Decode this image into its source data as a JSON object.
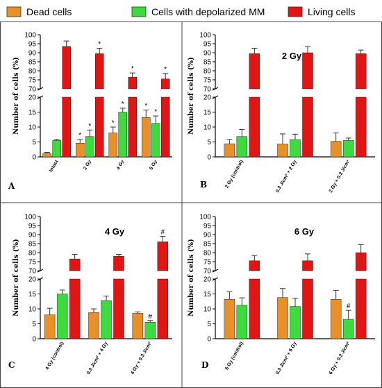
{
  "legend": [
    {
      "name": "Dead cells",
      "color": "#E8912A"
    },
    {
      "name": "Cells with depolarized MM",
      "color": "#3DDB3D"
    },
    {
      "name": "Living cells",
      "color": "#E21515"
    }
  ],
  "chart_data": [
    {
      "type": "bar",
      "panel": "A",
      "title": "",
      "ylabel": "Number of cells (%)",
      "categories": [
        "Intact",
        "2 Gy",
        "4 Gy",
        "6 Gy"
      ],
      "y_axis_break": {
        "lower": [
          0,
          20
        ],
        "upper": [
          70,
          100
        ]
      },
      "ylower_ticks": [
        0,
        5,
        10,
        15,
        20
      ],
      "yupper_ticks": [
        70,
        75,
        80,
        85,
        90,
        95,
        100
      ],
      "series": [
        {
          "name": "Dead cells",
          "values": [
            1.2,
            4.6,
            8.0,
            13.2
          ],
          "errors": [
            0.3,
            1.2,
            2.0,
            2.5
          ],
          "marks": [
            "",
            "*",
            "*",
            "*"
          ]
        },
        {
          "name": "Cells with depolarized MM",
          "values": [
            5.5,
            6.8,
            15.0,
            11.2
          ],
          "errors": [
            0.4,
            2.2,
            1.3,
            2.5
          ],
          "marks": [
            "",
            "*",
            "*",
            "*"
          ]
        },
        {
          "name": "Living cells",
          "values": [
            93.5,
            89.5,
            76.5,
            75.5
          ],
          "errors": [
            3.0,
            3.0,
            2.3,
            3.0
          ],
          "marks": [
            "",
            "*",
            "*",
            "*"
          ]
        }
      ]
    },
    {
      "type": "bar",
      "panel": "B",
      "title": "2 Gy",
      "ylabel": "Number of cells (%)",
      "categories": [
        "2 Gy (control)",
        "0.3 J/cm² + 2 Gy",
        "2 Gy + 0.3 J/cm²"
      ],
      "y_axis_break": {
        "lower": [
          0,
          20
        ],
        "upper": [
          70,
          100
        ]
      },
      "ylower_ticks": [
        0,
        5,
        10,
        15,
        20
      ],
      "yupper_ticks": [
        70,
        75,
        80,
        85,
        90,
        95,
        100
      ],
      "series": [
        {
          "name": "Dead cells",
          "values": [
            4.4,
            4.3,
            5.2
          ],
          "errors": [
            1.4,
            3.4,
            2.8
          ],
          "marks": [
            "",
            "",
            ""
          ]
        },
        {
          "name": "Cells with depolarized MM",
          "values": [
            6.8,
            5.8,
            5.5
          ],
          "errors": [
            2.4,
            1.8,
            0.8
          ],
          "marks": [
            "",
            "",
            ""
          ]
        },
        {
          "name": "Living cells",
          "values": [
            89.5,
            90.0,
            89.5
          ],
          "errors": [
            3.0,
            3.5,
            2.0
          ],
          "marks": [
            "",
            "",
            ""
          ]
        }
      ]
    },
    {
      "type": "bar",
      "panel": "C",
      "title": "4 Gy",
      "ylabel": "Number of cells (%)",
      "categories": [
        "4 Gy (control)",
        "0.3 J/cm² + 4 Gy",
        "4 Gy + 0.3 J/cm²"
      ],
      "y_axis_break": {
        "lower": [
          0,
          20
        ],
        "upper": [
          70,
          100
        ]
      },
      "ylower_ticks": [
        0,
        5,
        10,
        15,
        20
      ],
      "yupper_ticks": [
        70,
        75,
        80,
        85,
        90,
        95,
        100
      ],
      "series": [
        {
          "name": "Dead cells",
          "values": [
            8.0,
            8.8,
            8.5
          ],
          "errors": [
            2.2,
            1.2,
            0.5
          ],
          "marks": [
            "",
            "",
            ""
          ]
        },
        {
          "name": "Cells with depolarized MM",
          "values": [
            15.0,
            12.8,
            5.5
          ],
          "errors": [
            1.3,
            1.5,
            0.6
          ],
          "marks": [
            "",
            "",
            "#"
          ]
        },
        {
          "name": "Living cells",
          "values": [
            76.5,
            78.0,
            86.0
          ],
          "errors": [
            2.5,
            1.0,
            3.0
          ],
          "marks": [
            "",
            "",
            "#"
          ]
        }
      ]
    },
    {
      "type": "bar",
      "panel": "D",
      "title": "6 Gy",
      "ylabel": "Number of cells (%)",
      "categories": [
        "6 Gy (control)",
        "0.3 J/cm² + 6 Gy",
        "6 Gy + 0.3 J/cm²"
      ],
      "y_axis_break": {
        "lower": [
          0,
          20
        ],
        "upper": [
          70,
          100
        ]
      },
      "ylower_ticks": [
        0,
        5,
        10,
        15,
        20
      ],
      "yupper_ticks": [
        70,
        75,
        80,
        85,
        90,
        95,
        100
      ],
      "series": [
        {
          "name": "Dead cells",
          "values": [
            13.2,
            13.8,
            13.2
          ],
          "errors": [
            2.5,
            3.0,
            3.0
          ],
          "marks": [
            "",
            "",
            ""
          ]
        },
        {
          "name": "Cells with depolarized MM",
          "values": [
            11.2,
            10.8,
            6.5
          ],
          "errors": [
            2.5,
            2.8,
            3.0
          ],
          "marks": [
            "",
            "",
            "#"
          ]
        },
        {
          "name": "Living cells",
          "values": [
            75.5,
            75.5,
            80.0
          ],
          "errors": [
            3.0,
            3.8,
            4.5
          ],
          "marks": [
            "",
            "",
            ""
          ]
        }
      ]
    }
  ]
}
